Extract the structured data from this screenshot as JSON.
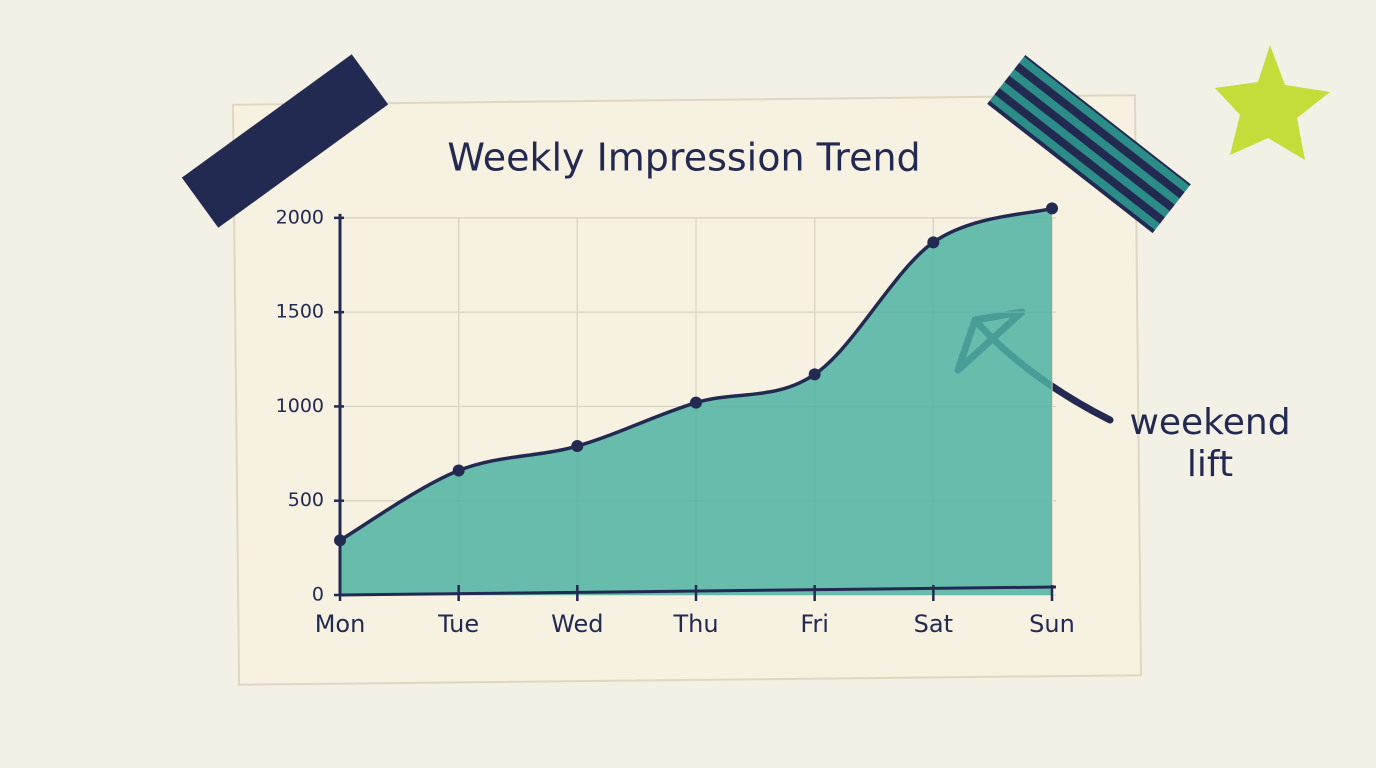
{
  "chart_data": {
    "type": "area",
    "title": "Weekly Impression Trend",
    "categories": [
      "Mon",
      "Tue",
      "Wed",
      "Thu",
      "Fri",
      "Sat",
      "Sun"
    ],
    "values": [
      290,
      660,
      790,
      1020,
      1170,
      1870,
      2050
    ],
    "color": "#4fb3a2",
    "line_color": "#232a52",
    "ylim": [
      0,
      2100
    ],
    "yticks": [
      0,
      500,
      1000,
      1500,
      2000
    ],
    "grid": true,
    "annotation": "weekend lift"
  }
}
